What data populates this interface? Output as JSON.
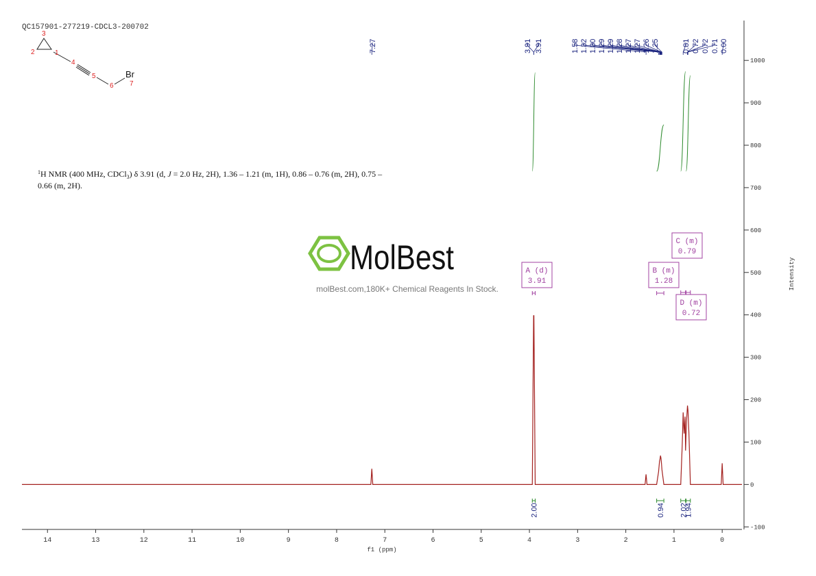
{
  "chart_data": {
    "type": "line",
    "title": "QC157901-277219-CDCL3-200702",
    "x_label": "f1 (ppm)",
    "y_label": "Intensity",
    "xlim": [
      14.53,
      -0.41
    ],
    "xticks": [
      14,
      13,
      12,
      11,
      10,
      9,
      8,
      7,
      6,
      5,
      4,
      3,
      2,
      1,
      0
    ],
    "ylim": [
      -106,
      1094
    ],
    "yticks": [
      -100,
      0,
      100,
      200,
      300,
      400,
      500,
      600,
      700,
      800,
      900,
      1000
    ],
    "color": "#a3201e",
    "x": [
      14.53,
      7.29,
      7.27,
      7.25,
      3.94,
      3.913,
      3.91,
      3.907,
      3.88,
      1.6,
      1.58,
      1.56,
      1.36,
      1.32,
      1.3,
      1.29,
      1.28,
      1.27,
      1.26,
      1.25,
      1.21,
      0.86,
      0.83,
      0.81,
      0.79,
      0.77,
      0.76,
      0.74,
      0.72,
      0.71,
      0.69,
      0.66,
      0.02,
      0,
      -0.02,
      -0.41
    ],
    "values": [
      0,
      0,
      37,
      0,
      0,
      399,
      385,
      399,
      0,
      0,
      24,
      0,
      0,
      30,
      55,
      60,
      68,
      62,
      50,
      35,
      0,
      0,
      90,
      170,
      120,
      160,
      80,
      150,
      186,
      175,
      120,
      0,
      0,
      50,
      0,
      0
    ],
    "peak_labels": [
      7.27,
      3.91,
      3.91,
      1.58,
      1.32,
      {
        "value": 1.3,
        "label": "1.30"
      },
      1.29,
      1.29,
      1.28,
      1.27,
      1.27,
      1.26,
      1.25,
      0.81,
      0.72,
      0.72,
      0.71,
      {
        "value": 0,
        "label": "0.00"
      }
    ],
    "multiplets": [
      {
        "name": "A (d)",
        "shift": 3.91,
        "range": [
          3.94,
          3.88
        ]
      },
      {
        "name": "B (m)",
        "shift": 1.28,
        "range": [
          1.36,
          1.21
        ]
      },
      {
        "name": "C (m)",
        "shift": 0.79,
        "range": [
          0.86,
          0.76
        ]
      },
      {
        "name": "D (m)",
        "shift": 0.72,
        "range": [
          0.75,
          0.66
        ]
      }
    ],
    "integrals": [
      {
        "value": {
          "value": 2,
          "label": "2.00"
        },
        "range": [
          3.94,
          3.88
        ]
      },
      {
        "value": 0.94,
        "range": [
          1.36,
          1.21
        ]
      },
      {
        "value": 2.02,
        "range": [
          0.86,
          0.76
        ]
      },
      {
        "value": 1.94,
        "range": [
          0.75,
          0.66
        ]
      }
    ],
    "annotation": [
      [
        "1",
        "H NMR (400 MHz, CDCl",
        "3",
        ") δ 3.91 (d, ",
        "J",
        " = 2.0 Hz, 2H), 1.36 – 1.21 (m, 1H), 0.86 – 0.76 (m, 2H), 0.75 –"
      ],
      "0.66 (m, 2H)."
    ],
    "structure": {
      "atom_numbers": [
        "3",
        "2",
        "1",
        "4",
        "5",
        "6",
        "7"
      ],
      "atom": "Br"
    },
    "watermark": {
      "brand": "MolBest",
      "tagline": "molBest.com,180K+ Chemical Reagents In Stock."
    }
  }
}
